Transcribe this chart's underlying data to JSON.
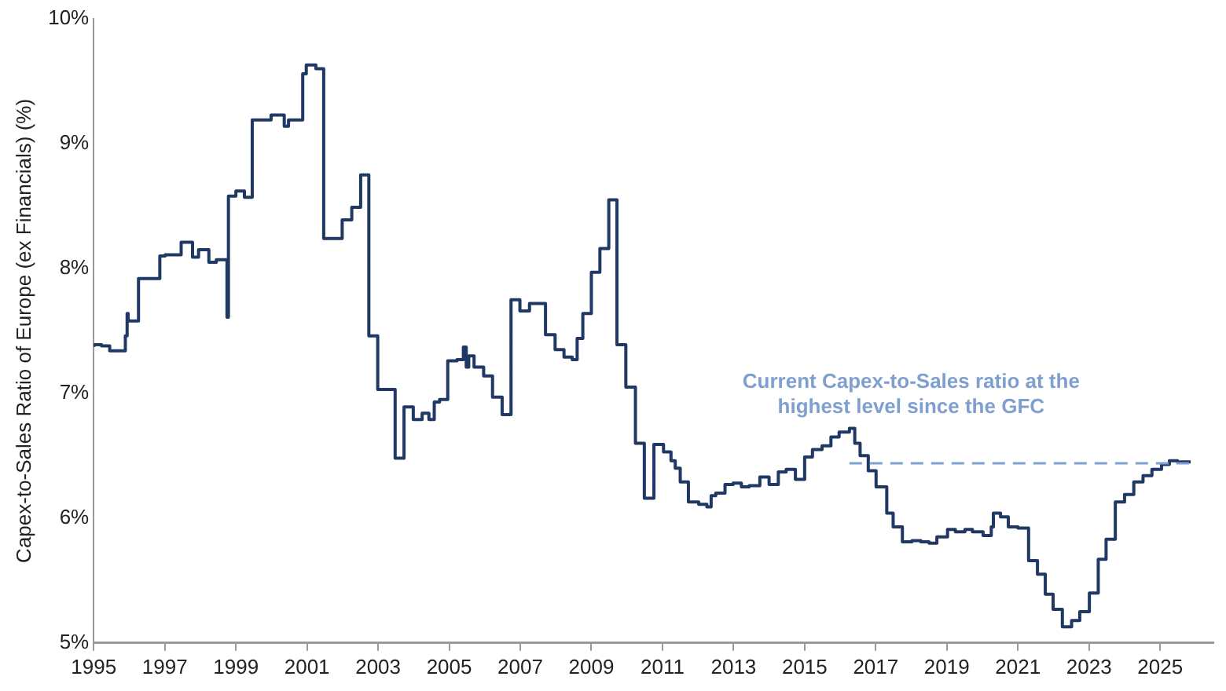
{
  "chart_data": {
    "type": "step",
    "ylabel": "Capex-to-Sales Ratio of Europe (ex Financials) (%)",
    "xlim": [
      1995,
      2026.5
    ],
    "xticks": [
      1995,
      1997,
      1999,
      2001,
      2003,
      2005,
      2007,
      2009,
      2011,
      2013,
      2015,
      2017,
      2019,
      2021,
      2023,
      2025
    ],
    "ylim": [
      5,
      10
    ],
    "yticks": [
      {
        "value": 5,
        "label": "5%"
      },
      {
        "value": 6,
        "label": "6%"
      },
      {
        "value": 7,
        "label": "7%"
      },
      {
        "value": 8,
        "label": "8%"
      },
      {
        "value": 9,
        "label": "9%"
      },
      {
        "value": 10,
        "label": "10%"
      }
    ],
    "grid": false,
    "legend": false,
    "marker": "none",
    "line_style": "solid",
    "series": [
      {
        "color": "#1f3864",
        "x": [
          1995.0,
          1995.22,
          1995.45,
          1995.89,
          1995.94,
          1995.97,
          1996.26,
          1996.86,
          1997.01,
          1997.46,
          1997.78,
          1997.95,
          1998.24,
          1998.45,
          1998.75,
          1998.79,
          1999.0,
          1999.24,
          1999.46,
          1999.99,
          2000.36,
          2000.48,
          2000.88,
          2000.98,
          2001.25,
          2001.47,
          2001.99,
          2002.26,
          2002.51,
          2002.74,
          2002.99,
          2003.48,
          2003.73,
          2003.99,
          2004.24,
          2004.43,
          2004.58,
          2004.73,
          2004.96,
          2005.22,
          2005.4,
          2005.48,
          2005.55,
          2005.7,
          2005.97,
          2006.22,
          2006.49,
          2006.74,
          2006.99,
          2007.26,
          2007.46,
          2007.71,
          2007.98,
          2008.23,
          2008.46,
          2008.6,
          2008.76,
          2009.0,
          2009.24,
          2009.49,
          2009.72,
          2009.97,
          2010.24,
          2010.49,
          2010.76,
          2011.03,
          2011.24,
          2011.36,
          2011.5,
          2011.73,
          2012.02,
          2012.25,
          2012.37,
          2012.5,
          2012.76,
          2012.99,
          2013.22,
          2013.44,
          2013.74,
          2014.0,
          2014.26,
          2014.48,
          2014.74,
          2015.0,
          2015.22,
          2015.49,
          2015.74,
          2015.97,
          2016.26,
          2016.41,
          2016.56,
          2016.79,
          2017.01,
          2017.31,
          2017.49,
          2017.75,
          2018.02,
          2018.27,
          2018.5,
          2018.72,
          2019.02,
          2019.24,
          2019.51,
          2019.72,
          2020.02,
          2020.25,
          2020.31,
          2020.51,
          2020.73,
          2021.0,
          2021.3,
          2021.55,
          2021.77,
          2021.99,
          2022.25,
          2022.51,
          2022.74,
          2023.01,
          2023.26,
          2023.48,
          2023.74,
          2024.0,
          2024.26,
          2024.52,
          2024.77,
          2025.04,
          2025.26,
          2025.49,
          2025.71,
          2025.86
        ],
        "values": [
          7.37,
          7.39,
          7.38,
          7.34,
          7.46,
          7.64,
          7.58,
          7.92,
          8.1,
          8.11,
          8.21,
          8.09,
          8.15,
          8.05,
          8.07,
          7.61,
          8.58,
          8.62,
          8.57,
          9.19,
          9.23,
          9.14,
          9.19,
          9.56,
          9.63,
          9.6,
          8.24,
          8.39,
          8.49,
          8.75,
          7.46,
          7.03,
          6.48,
          6.89,
          6.79,
          6.84,
          6.79,
          6.93,
          6.95,
          7.26,
          7.27,
          7.37,
          7.21,
          7.3,
          7.21,
          7.14,
          6.97,
          6.83,
          7.75,
          7.66,
          7.72,
          7.72,
          7.47,
          7.35,
          7.29,
          7.27,
          7.44,
          7.64,
          7.97,
          8.16,
          8.55,
          7.39,
          7.05,
          6.6,
          6.16,
          6.59,
          6.53,
          6.46,
          6.4,
          6.29,
          6.13,
          6.11,
          6.09,
          6.18,
          6.2,
          6.27,
          6.28,
          6.25,
          6.26,
          6.33,
          6.27,
          6.37,
          6.39,
          6.31,
          6.49,
          6.55,
          6.58,
          6.65,
          6.69,
          6.72,
          6.6,
          6.5,
          6.38,
          6.25,
          6.04,
          5.93,
          5.81,
          5.82,
          5.81,
          5.8,
          5.85,
          5.91,
          5.89,
          5.91,
          5.89,
          5.86,
          5.93,
          6.04,
          6.01,
          5.93,
          5.92,
          5.66,
          5.55,
          5.39,
          5.27,
          5.13,
          5.18,
          5.25,
          5.4,
          5.67,
          5.83,
          6.13,
          6.19,
          6.29,
          6.34,
          6.39,
          6.43,
          6.46,
          6.45,
          6.45
        ]
      }
    ],
    "ref_lines": [
      {
        "axis": "y",
        "value": 6.44,
        "label": "Current Capex-to-Sales ratio at the highest level since the GFC",
        "color": "#7f9fcf",
        "line_style": "dashed"
      }
    ]
  }
}
